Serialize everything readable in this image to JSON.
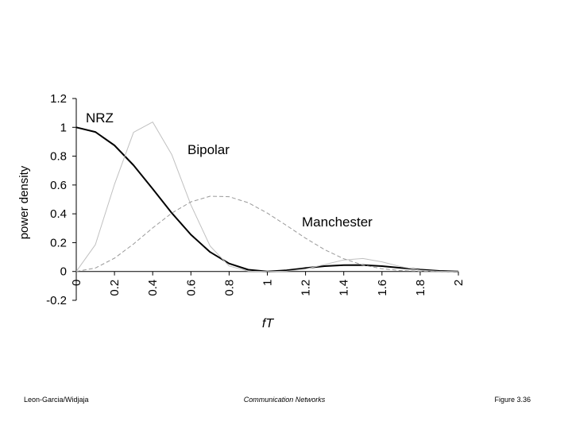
{
  "chart_data": {
    "type": "line",
    "x": [
      0,
      0.1,
      0.2,
      0.3,
      0.4,
      0.5,
      0.6,
      0.7,
      0.8,
      0.9,
      1,
      1.1,
      1.2,
      1.3,
      1.4,
      1.5,
      1.6,
      1.7,
      1.8,
      1.9,
      2
    ],
    "series": [
      {
        "name": "NRZ",
        "color": "#000000",
        "width": 2,
        "dashed": false,
        "values": [
          1,
          0.968,
          0.875,
          0.737,
          0.573,
          0.405,
          0.255,
          0.135,
          0.055,
          0.012,
          0,
          0.008,
          0.024,
          0.037,
          0.044,
          0.045,
          0.037,
          0.025,
          0.013,
          0.004,
          0
        ]
      },
      {
        "name": "Bipolar",
        "color": "#c0c0c0",
        "width": 1,
        "dashed": false,
        "values": [
          0,
          0.185,
          0.604,
          0.965,
          1.037,
          0.81,
          0.462,
          0.177,
          0.038,
          0.002,
          0,
          0.002,
          0.017,
          0.048,
          0.08,
          0.09,
          0.067,
          0.033,
          0.009,
          0.001,
          0
        ]
      },
      {
        "name": "Manchester",
        "color": "#999999",
        "width": 1,
        "dashed": true,
        "values": [
          0,
          0.024,
          0.092,
          0.191,
          0.302,
          0.405,
          0.483,
          0.522,
          0.519,
          0.477,
          0.405,
          0.319,
          0.231,
          0.151,
          0.088,
          0.045,
          0.019,
          0.006,
          0.001,
          0,
          0
        ]
      }
    ],
    "xlabel": "fT",
    "ylabel": "power density",
    "xlim": [
      0,
      2
    ],
    "xticks": [
      0,
      0.2,
      0.4,
      0.6,
      0.8,
      1,
      1.2,
      1.4,
      1.6,
      1.8,
      2
    ],
    "ylim": [
      -0.2,
      1.2
    ],
    "yticks": [
      -0.2,
      0,
      0.2,
      0.4,
      0.6,
      0.8,
      1,
      1.2
    ],
    "grid": false
  },
  "footer": {
    "left": "Leon-Garcia/Widjaja",
    "center": "Communication Networks",
    "right": "Figure 3.36"
  }
}
